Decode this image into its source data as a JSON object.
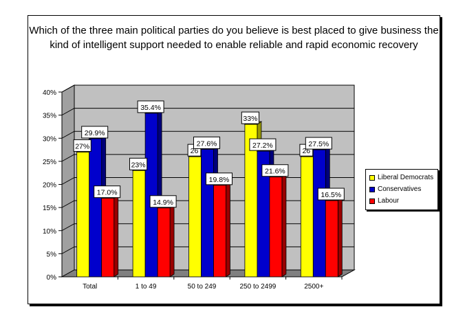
{
  "chart_data": {
    "type": "bar",
    "title": "Which of the three main political parties do you believe is best placed to give business the kind of intelligent support needed to enable reliable and rapid economic recovery",
    "categories": [
      "Total",
      "1 to 49",
      "50 to 249",
      "250 to 2499",
      "2500+"
    ],
    "series": [
      {
        "name": "Liberal Democrats",
        "color": "#ffff00",
        "values": [
          27,
          23,
          26,
          33,
          26
        ],
        "labels": [
          "27%",
          "23%",
          "26",
          "33%",
          "26"
        ]
      },
      {
        "name": "Conservatives",
        "color": "#0000cc",
        "values": [
          29.9,
          35.4,
          27.6,
          27.2,
          27.5
        ],
        "labels": [
          "29.9%",
          "35.4%",
          "27.6%",
          "27.2%",
          "27.5%"
        ]
      },
      {
        "name": "Labour",
        "color": "#ff0000",
        "values": [
          17.0,
          14.9,
          19.8,
          21.6,
          16.5
        ],
        "labels": [
          "17.0%",
          "14.9%",
          "19.8%",
          "21.6%",
          "16.5%"
        ]
      }
    ],
    "y_ticks": [
      "0%",
      "5%",
      "10%",
      "15%",
      "20%",
      "25%",
      "30%",
      "35%",
      "40%"
    ],
    "ylim": [
      0,
      40
    ],
    "grid": true,
    "legend_position": "right",
    "xlabel": "",
    "ylabel": ""
  }
}
